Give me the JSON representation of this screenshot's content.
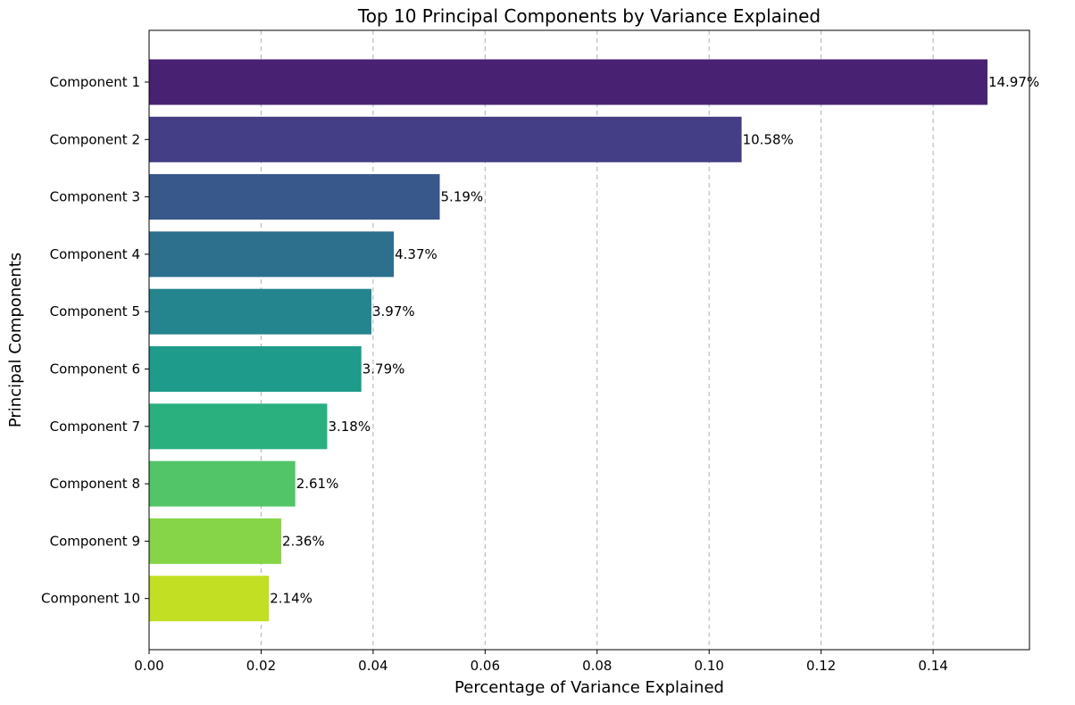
{
  "chart_data": {
    "type": "bar",
    "orientation": "horizontal",
    "title": "Top 10 Principal Components by Variance Explained",
    "xlabel": "Percentage of Variance Explained",
    "ylabel": "Principal Components",
    "categories": [
      "Component 1",
      "Component 2",
      "Component 3",
      "Component 4",
      "Component 5",
      "Component 6",
      "Component 7",
      "Component 8",
      "Component 9",
      "Component 10"
    ],
    "values": [
      0.1497,
      0.1058,
      0.0519,
      0.0437,
      0.0397,
      0.0379,
      0.0318,
      0.0261,
      0.0236,
      0.0214
    ],
    "data_labels": [
      "14.97%",
      "10.58%",
      "5.19%",
      "4.37%",
      "3.97%",
      "3.79%",
      "3.18%",
      "2.61%",
      "2.36%",
      "2.14%"
    ],
    "colors": [
      "#482173",
      "#433e85",
      "#38588c",
      "#2d708e",
      "#25858e",
      "#1e9b8a",
      "#2ab07f",
      "#52c569",
      "#86d549",
      "#c2df23"
    ],
    "xticks": [
      0.0,
      0.02,
      0.04,
      0.06,
      0.08,
      0.1,
      0.12,
      0.14
    ],
    "xtick_labels": [
      "0.00",
      "0.02",
      "0.04",
      "0.06",
      "0.08",
      "0.10",
      "0.12",
      "0.14"
    ],
    "xlim": [
      0,
      0.1572
    ],
    "grid": "x-dashed",
    "legend": "none"
  }
}
